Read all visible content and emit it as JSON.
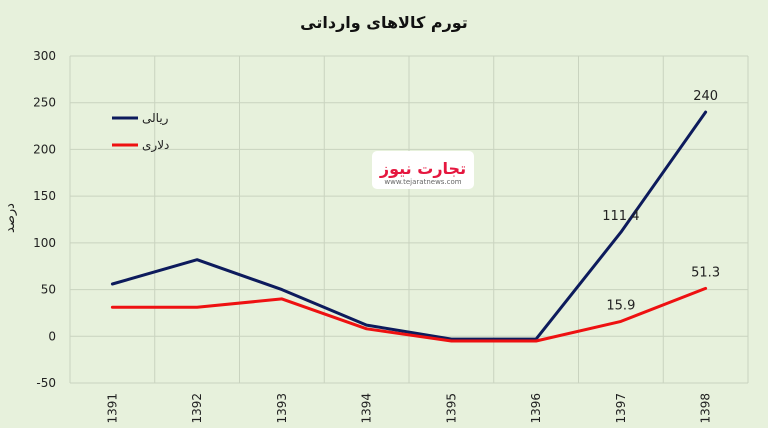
{
  "chart_data": {
    "type": "line",
    "title": "تورم کالاهای وارداتی",
    "ylabel": "درصد",
    "xlabel": "",
    "categories": [
      "1391",
      "1392",
      "1393",
      "1394",
      "1395",
      "1396",
      "1397",
      "1398"
    ],
    "yticks": [
      300,
      250,
      200,
      150,
      100,
      50,
      0,
      -50
    ],
    "ylim": [
      -50,
      300
    ],
    "grid": true,
    "legend_position": "top-left",
    "series": [
      {
        "name": "ریالی",
        "color": "#0d1b5c",
        "values": [
          56,
          82,
          50,
          12,
          -3,
          -3,
          111.4,
          240
        ]
      },
      {
        "name": "دلاری",
        "color": "#ee1111",
        "values": [
          31,
          31,
          40,
          8,
          -5,
          -5,
          15.9,
          51.3
        ]
      }
    ],
    "annotations": [
      {
        "text": "240",
        "series": 0,
        "index": 7
      },
      {
        "text": "111.4",
        "series": 0,
        "index": 6
      },
      {
        "text": "51.3",
        "series": 1,
        "index": 7
      },
      {
        "text": "15.9",
        "series": 1,
        "index": 6
      }
    ]
  },
  "logo": {
    "text": "تجارت نیوز",
    "subtext": "www.tejaratnews.com"
  }
}
